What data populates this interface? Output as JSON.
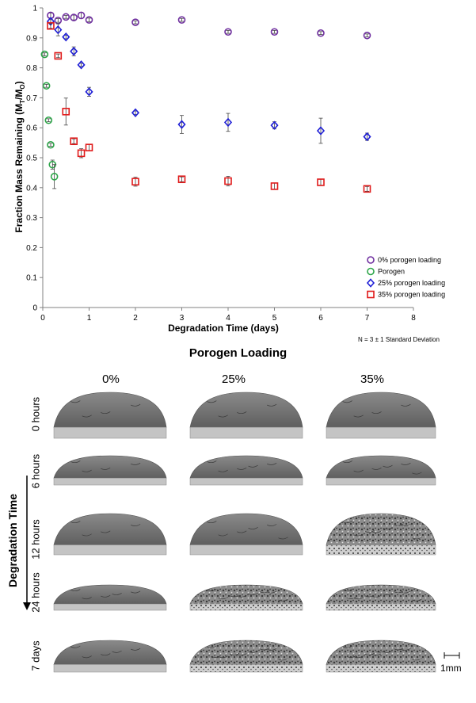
{
  "chart_data": {
    "type": "scatter",
    "xlabel": "Degradation Time (days)",
    "ylabel_main": "Fraction Mass Remaining (M",
    "ylabel_sub1": "T",
    "ylabel_mid": "/M",
    "ylabel_sub2": "O",
    "ylabel_end": ")",
    "xlim": [
      0,
      8
    ],
    "ylim": [
      0,
      1
    ],
    "x_ticks": [
      "0",
      "1",
      "2",
      "3",
      "4",
      "5",
      "6",
      "7",
      "8"
    ],
    "y_ticks": [
      "0",
      "0.1",
      "0.2",
      "0.3",
      "0.4",
      "0.5",
      "0.6",
      "0.7",
      "0.8",
      "0.9",
      "1"
    ],
    "legend_position": "bottom-right",
    "note": "N = 3 ± 1 Standard Deviation",
    "series": [
      {
        "name": "0% porogen loading",
        "marker": "circle",
        "color": "#7030a0",
        "points": [
          {
            "x": 0.17,
            "y": 0.975,
            "err": 0.008
          },
          {
            "x": 0.33,
            "y": 0.958,
            "err": 0.006
          },
          {
            "x": 0.5,
            "y": 0.97,
            "err": 0.005
          },
          {
            "x": 0.67,
            "y": 0.968,
            "err": 0.008
          },
          {
            "x": 0.83,
            "y": 0.975,
            "err": 0.01
          },
          {
            "x": 1,
            "y": 0.96,
            "err": 0.006
          },
          {
            "x": 2,
            "y": 0.952,
            "err": 0.005
          },
          {
            "x": 3,
            "y": 0.96,
            "err": 0.005
          },
          {
            "x": 4,
            "y": 0.92,
            "err": 0.005
          },
          {
            "x": 5,
            "y": 0.92,
            "err": 0.005
          },
          {
            "x": 6,
            "y": 0.916,
            "err": 0.005
          },
          {
            "x": 7,
            "y": 0.908,
            "err": 0.005
          }
        ]
      },
      {
        "name": "Porogen",
        "marker": "circle",
        "color": "#2ea64a",
        "points": [
          {
            "x": 0.04,
            "y": 0.845,
            "err": 0.005
          },
          {
            "x": 0.08,
            "y": 0.74,
            "err": 0.005
          },
          {
            "x": 0.125,
            "y": 0.625,
            "err": 0.005
          },
          {
            "x": 0.17,
            "y": 0.543,
            "err": 0.005
          },
          {
            "x": 0.21,
            "y": 0.477,
            "err": 0.015
          },
          {
            "x": 0.25,
            "y": 0.437,
            "err": 0.04
          }
        ]
      },
      {
        "name": "25% porogen loading",
        "marker": "diamond",
        "color": "#1f1fd6",
        "points": [
          {
            "x": 0.17,
            "y": 0.955,
            "err": 0.006
          },
          {
            "x": 0.33,
            "y": 0.927,
            "err": 0.02
          },
          {
            "x": 0.5,
            "y": 0.903,
            "err": 0.006
          },
          {
            "x": 0.67,
            "y": 0.855,
            "err": 0.015
          },
          {
            "x": 0.83,
            "y": 0.81,
            "err": 0.005
          },
          {
            "x": 1,
            "y": 0.72,
            "err": 0.015
          },
          {
            "x": 2,
            "y": 0.65,
            "err": 0.006
          },
          {
            "x": 3,
            "y": 0.611,
            "err": 0.03
          },
          {
            "x": 4,
            "y": 0.618,
            "err": 0.03
          },
          {
            "x": 5,
            "y": 0.608,
            "err": 0.012
          },
          {
            "x": 6,
            "y": 0.59,
            "err": 0.042
          },
          {
            "x": 7,
            "y": 0.57,
            "err": 0.012
          }
        ]
      },
      {
        "name": "35% porogen loading",
        "marker": "square",
        "color": "#e01b1b",
        "points": [
          {
            "x": 0.17,
            "y": 0.94,
            "err": 0.008
          },
          {
            "x": 0.33,
            "y": 0.84,
            "err": 0.006
          },
          {
            "x": 0.5,
            "y": 0.654,
            "err": 0.045
          },
          {
            "x": 0.67,
            "y": 0.555,
            "err": 0.008
          },
          {
            "x": 0.83,
            "y": 0.515,
            "err": 0.015
          },
          {
            "x": 1,
            "y": 0.534,
            "err": 0.01
          },
          {
            "x": 2,
            "y": 0.42,
            "err": 0.015
          },
          {
            "x": 3,
            "y": 0.428,
            "err": 0.008
          },
          {
            "x": 4,
            "y": 0.422,
            "err": 0.016
          },
          {
            "x": 5,
            "y": 0.405,
            "err": 0.01
          },
          {
            "x": 6,
            "y": 0.418,
            "err": 0.01
          },
          {
            "x": 7,
            "y": 0.396,
            "err": 0.008
          }
        ]
      }
    ]
  },
  "panel": {
    "title": "Porogen Loading",
    "columns": [
      "0%",
      "25%",
      "35%"
    ],
    "rows": [
      "0 hours",
      "6 hours",
      "12 hours",
      "24 hours",
      "7 days"
    ],
    "side_title": "Degradation Time",
    "scale_bar": "1mm"
  }
}
